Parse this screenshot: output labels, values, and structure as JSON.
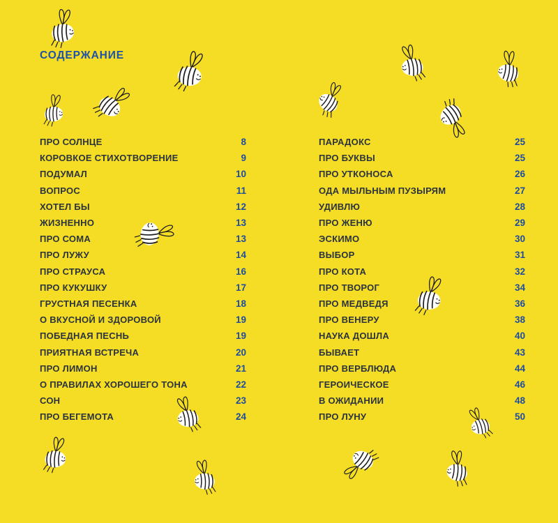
{
  "page": {
    "title": "СОДЕРЖАНИЕ"
  },
  "colors": {
    "background": "#F6DD25",
    "heading_blue": "#1E51A8",
    "entry_text": "#2B333C",
    "page_number_blue": "#1D4C9F",
    "bee_body": "#FFFFFF",
    "bee_outline": "#1C1C1C"
  },
  "icons": {
    "bee": "hand-drawn-bee-illustration",
    "bee_count": 16
  },
  "toc": {
    "columns": [
      {
        "entries": [
          {
            "title": "ПРО СОЛНЦЕ",
            "page": "8"
          },
          {
            "title": "КОРОВКОЕ СТИХОТВОРЕНИЕ",
            "page": "9"
          },
          {
            "title": "ПОДУМАЛ",
            "page": "10"
          },
          {
            "title": "ВОПРОС",
            "page": "11"
          },
          {
            "title": "ХОТЕЛ БЫ",
            "page": "12"
          },
          {
            "title": "ЖИЗНЕННО",
            "page": "13"
          },
          {
            "title": "ПРО СОМА",
            "page": "13"
          },
          {
            "title": "ПРО ЛУЖУ",
            "page": "14"
          },
          {
            "title": "ПРО СТРАУСА",
            "page": "16"
          },
          {
            "title": "ПРО КУКУШКУ",
            "page": "17"
          },
          {
            "title": "ГРУСТНАЯ ПЕСЕНКА",
            "page": "18"
          },
          {
            "title": "О ВКУСНОЙ И ЗДОРОВОЙ",
            "page": "19"
          },
          {
            "title": "ПОБЕДНАЯ ПЕСНЬ",
            "page": "19"
          },
          {
            "title": "ПРИЯТНАЯ ВСТРЕЧА",
            "page": "20"
          },
          {
            "title": "ПРО ЛИМОН",
            "page": "21"
          },
          {
            "title": "О ПРАВИЛАХ ХОРОШЕГО ТОНА",
            "page": "22"
          },
          {
            "title": "СОН",
            "page": "23"
          },
          {
            "title": "ПРО БЕГЕМОТА",
            "page": "24"
          }
        ]
      },
      {
        "entries": [
          {
            "title": "ПАРАДОКС",
            "page": "25"
          },
          {
            "title": "ПРО БУКВЫ",
            "page": "25"
          },
          {
            "title": "ПРО УТКОНОСА",
            "page": "26"
          },
          {
            "title": "ОДА МЫЛЬНЫМ ПУЗЫРЯМ",
            "page": "27"
          },
          {
            "title": "УДИВЛЮ",
            "page": "28"
          },
          {
            "title": "ПРО ЖЕНЮ",
            "page": "29"
          },
          {
            "title": "ЭСКИМО",
            "page": "30"
          },
          {
            "title": "ВЫБОР",
            "page": "31"
          },
          {
            "title": "ПРО КОТА",
            "page": "32"
          },
          {
            "title": "ПРО ТВОРОГ",
            "page": "34"
          },
          {
            "title": "ПРО МЕДВЕДЯ",
            "page": "36"
          },
          {
            "title": "ПРО ВЕНЕРУ",
            "page": "38"
          },
          {
            "title": "НАУКА ДОШЛА",
            "page": "40"
          },
          {
            "title": "БЫВАЕТ",
            "page": "43"
          },
          {
            "title": "ПРО ВЕРБЛЮДА",
            "page": "44"
          },
          {
            "title": "ГЕРОИЧЕСКОЕ",
            "page": "46"
          },
          {
            "title": "В ОЖИДАНИИ",
            "page": "48"
          },
          {
            "title": "ПРО ЛУНУ",
            "page": "50"
          }
        ]
      }
    ]
  }
}
